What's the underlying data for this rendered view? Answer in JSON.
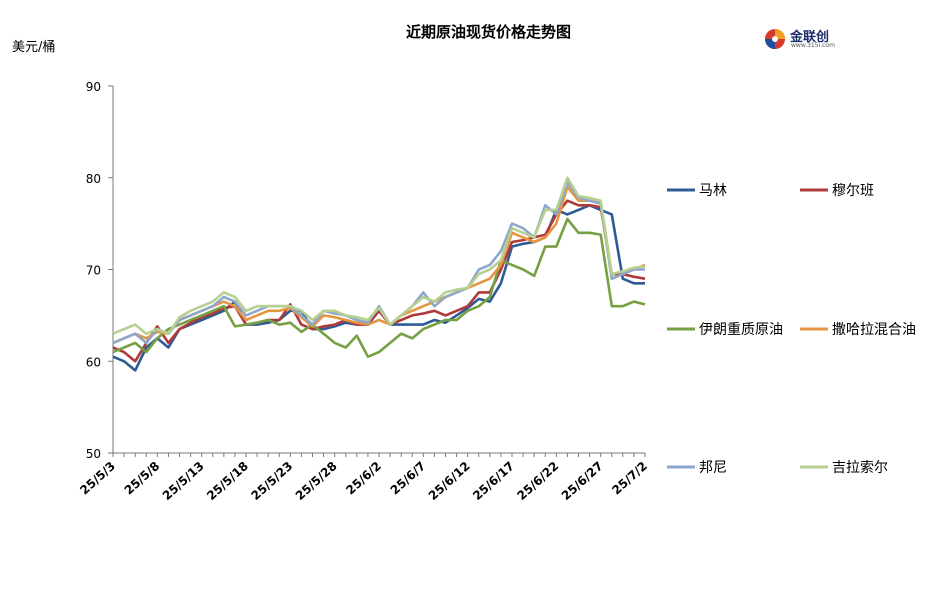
{
  "chart_data": {
    "type": "line",
    "title": "近期原油现货价格走势图",
    "ylabel": "美元/桶",
    "ylim": [
      50,
      90
    ],
    "yticks": [
      50,
      60,
      70,
      80,
      90
    ],
    "x_tick_labels": [
      "25/5/3",
      "25/5/8",
      "25/5/13",
      "25/5/18",
      "25/5/23",
      "25/5/28",
      "25/6/2",
      "25/6/7",
      "25/6/12",
      "25/6/17",
      "25/6/22",
      "25/6/27",
      "25/7/2"
    ],
    "x_tick_indices": [
      0,
      4,
      8,
      12,
      16,
      20,
      24,
      28,
      32,
      36,
      40,
      44,
      48
    ],
    "x_count": 49,
    "grid": false,
    "legend_position": "right",
    "series": [
      {
        "name": "马林",
        "color": "#2e5b96",
        "values": [
          60.5,
          60.0,
          59.0,
          61.5,
          62.5,
          61.5,
          63.5,
          64.0,
          64.5,
          65.0,
          65.5,
          66.5,
          64.0,
          64.0,
          64.2,
          64.5,
          65.5,
          65.5,
          63.5,
          63.5,
          63.8,
          64.2,
          64.0,
          64.0,
          65.5,
          64.0,
          64.0,
          64.0,
          64.0,
          64.5,
          64.2,
          65.0,
          65.8,
          66.8,
          66.5,
          68.5,
          72.5,
          72.8,
          73.0,
          73.5,
          76.5,
          76.0,
          76.5,
          77.0,
          76.5,
          76.0,
          69.0,
          68.5,
          68.5
        ]
      },
      {
        "name": "穆尔班",
        "color": "#b03a3a",
        "values": [
          61.5,
          61.0,
          60.0,
          62.0,
          63.8,
          62.0,
          63.5,
          64.2,
          64.8,
          65.2,
          65.8,
          66.0,
          64.0,
          64.2,
          64.5,
          64.5,
          66.2,
          64.0,
          63.5,
          63.8,
          64.0,
          64.5,
          64.0,
          64.0,
          65.5,
          64.0,
          64.5,
          65.0,
          65.2,
          65.5,
          65.0,
          65.5,
          66.0,
          67.5,
          67.5,
          70.0,
          73.0,
          73.2,
          73.5,
          73.8,
          76.0,
          77.5,
          77.0,
          77.0,
          76.8,
          69.5,
          69.5,
          69.2,
          69.0
        ]
      },
      {
        "name": "伊朗重质原油",
        "color": "#76a043",
        "values": [
          61.0,
          61.5,
          62.0,
          61.0,
          62.5,
          63.5,
          64.0,
          64.5,
          65.0,
          65.5,
          66.0,
          63.8,
          64.0,
          64.2,
          64.5,
          64.0,
          64.2,
          63.2,
          64.0,
          63.0,
          62.0,
          61.5,
          62.8,
          60.5,
          61.0,
          62.0,
          63.0,
          62.5,
          63.5,
          64.0,
          64.5,
          64.5,
          65.5,
          66.0,
          67.0,
          71.0,
          70.5,
          70.0,
          69.3,
          72.5,
          72.5,
          75.5,
          74.0,
          74.0,
          73.8,
          66.0,
          66.0,
          66.5,
          66.2
        ]
      },
      {
        "name": "撒哈拉混合油",
        "color": "#e69540",
        "values": [
          62.0,
          62.5,
          63.0,
          62.5,
          63.2,
          63.0,
          64.5,
          65.0,
          65.5,
          66.0,
          66.5,
          66.0,
          64.5,
          65.0,
          65.5,
          65.5,
          65.8,
          64.8,
          63.8,
          65.0,
          64.8,
          64.5,
          64.2,
          64.0,
          64.5,
          64.0,
          65.0,
          65.5,
          66.0,
          66.5,
          67.0,
          67.5,
          68.0,
          68.5,
          69.0,
          70.5,
          74.0,
          73.5,
          73.0,
          73.5,
          75.0,
          79.0,
          77.5,
          77.5,
          77.2,
          69.0,
          69.5,
          70.0,
          70.5
        ]
      },
      {
        "name": "邦尼",
        "color": "#8ea7cc",
        "values": [
          62.0,
          62.5,
          63.0,
          62.0,
          63.5,
          63.0,
          64.5,
          65.0,
          65.5,
          66.0,
          67.0,
          66.5,
          65.0,
          65.5,
          66.0,
          66.0,
          66.0,
          65.0,
          64.0,
          65.5,
          65.2,
          65.0,
          64.5,
          64.2,
          66.0,
          64.0,
          65.0,
          66.0,
          67.5,
          66.0,
          67.0,
          67.5,
          68.0,
          70.0,
          70.5,
          72.0,
          75.0,
          74.5,
          73.5,
          77.0,
          76.0,
          79.5,
          77.8,
          77.5,
          77.2,
          69.0,
          69.5,
          70.0,
          70.0
        ]
      },
      {
        "name": "吉拉索尔",
        "color": "#b5d08f",
        "values": [
          63.0,
          63.5,
          64.0,
          63.0,
          63.5,
          63.0,
          64.8,
          65.5,
          66.0,
          66.5,
          67.5,
          67.0,
          65.5,
          66.0,
          66.0,
          66.0,
          66.0,
          65.5,
          64.5,
          65.5,
          65.5,
          65.0,
          64.8,
          64.5,
          65.8,
          64.0,
          65.0,
          66.0,
          67.0,
          66.5,
          67.5,
          67.8,
          68.0,
          69.5,
          70.0,
          71.0,
          74.5,
          74.0,
          73.5,
          76.5,
          76.5,
          80.0,
          78.0,
          77.8,
          77.5,
          69.5,
          69.8,
          70.2,
          70.3
        ]
      }
    ]
  },
  "logo": {
    "name": "金联创",
    "sub": "www.315i.com"
  }
}
